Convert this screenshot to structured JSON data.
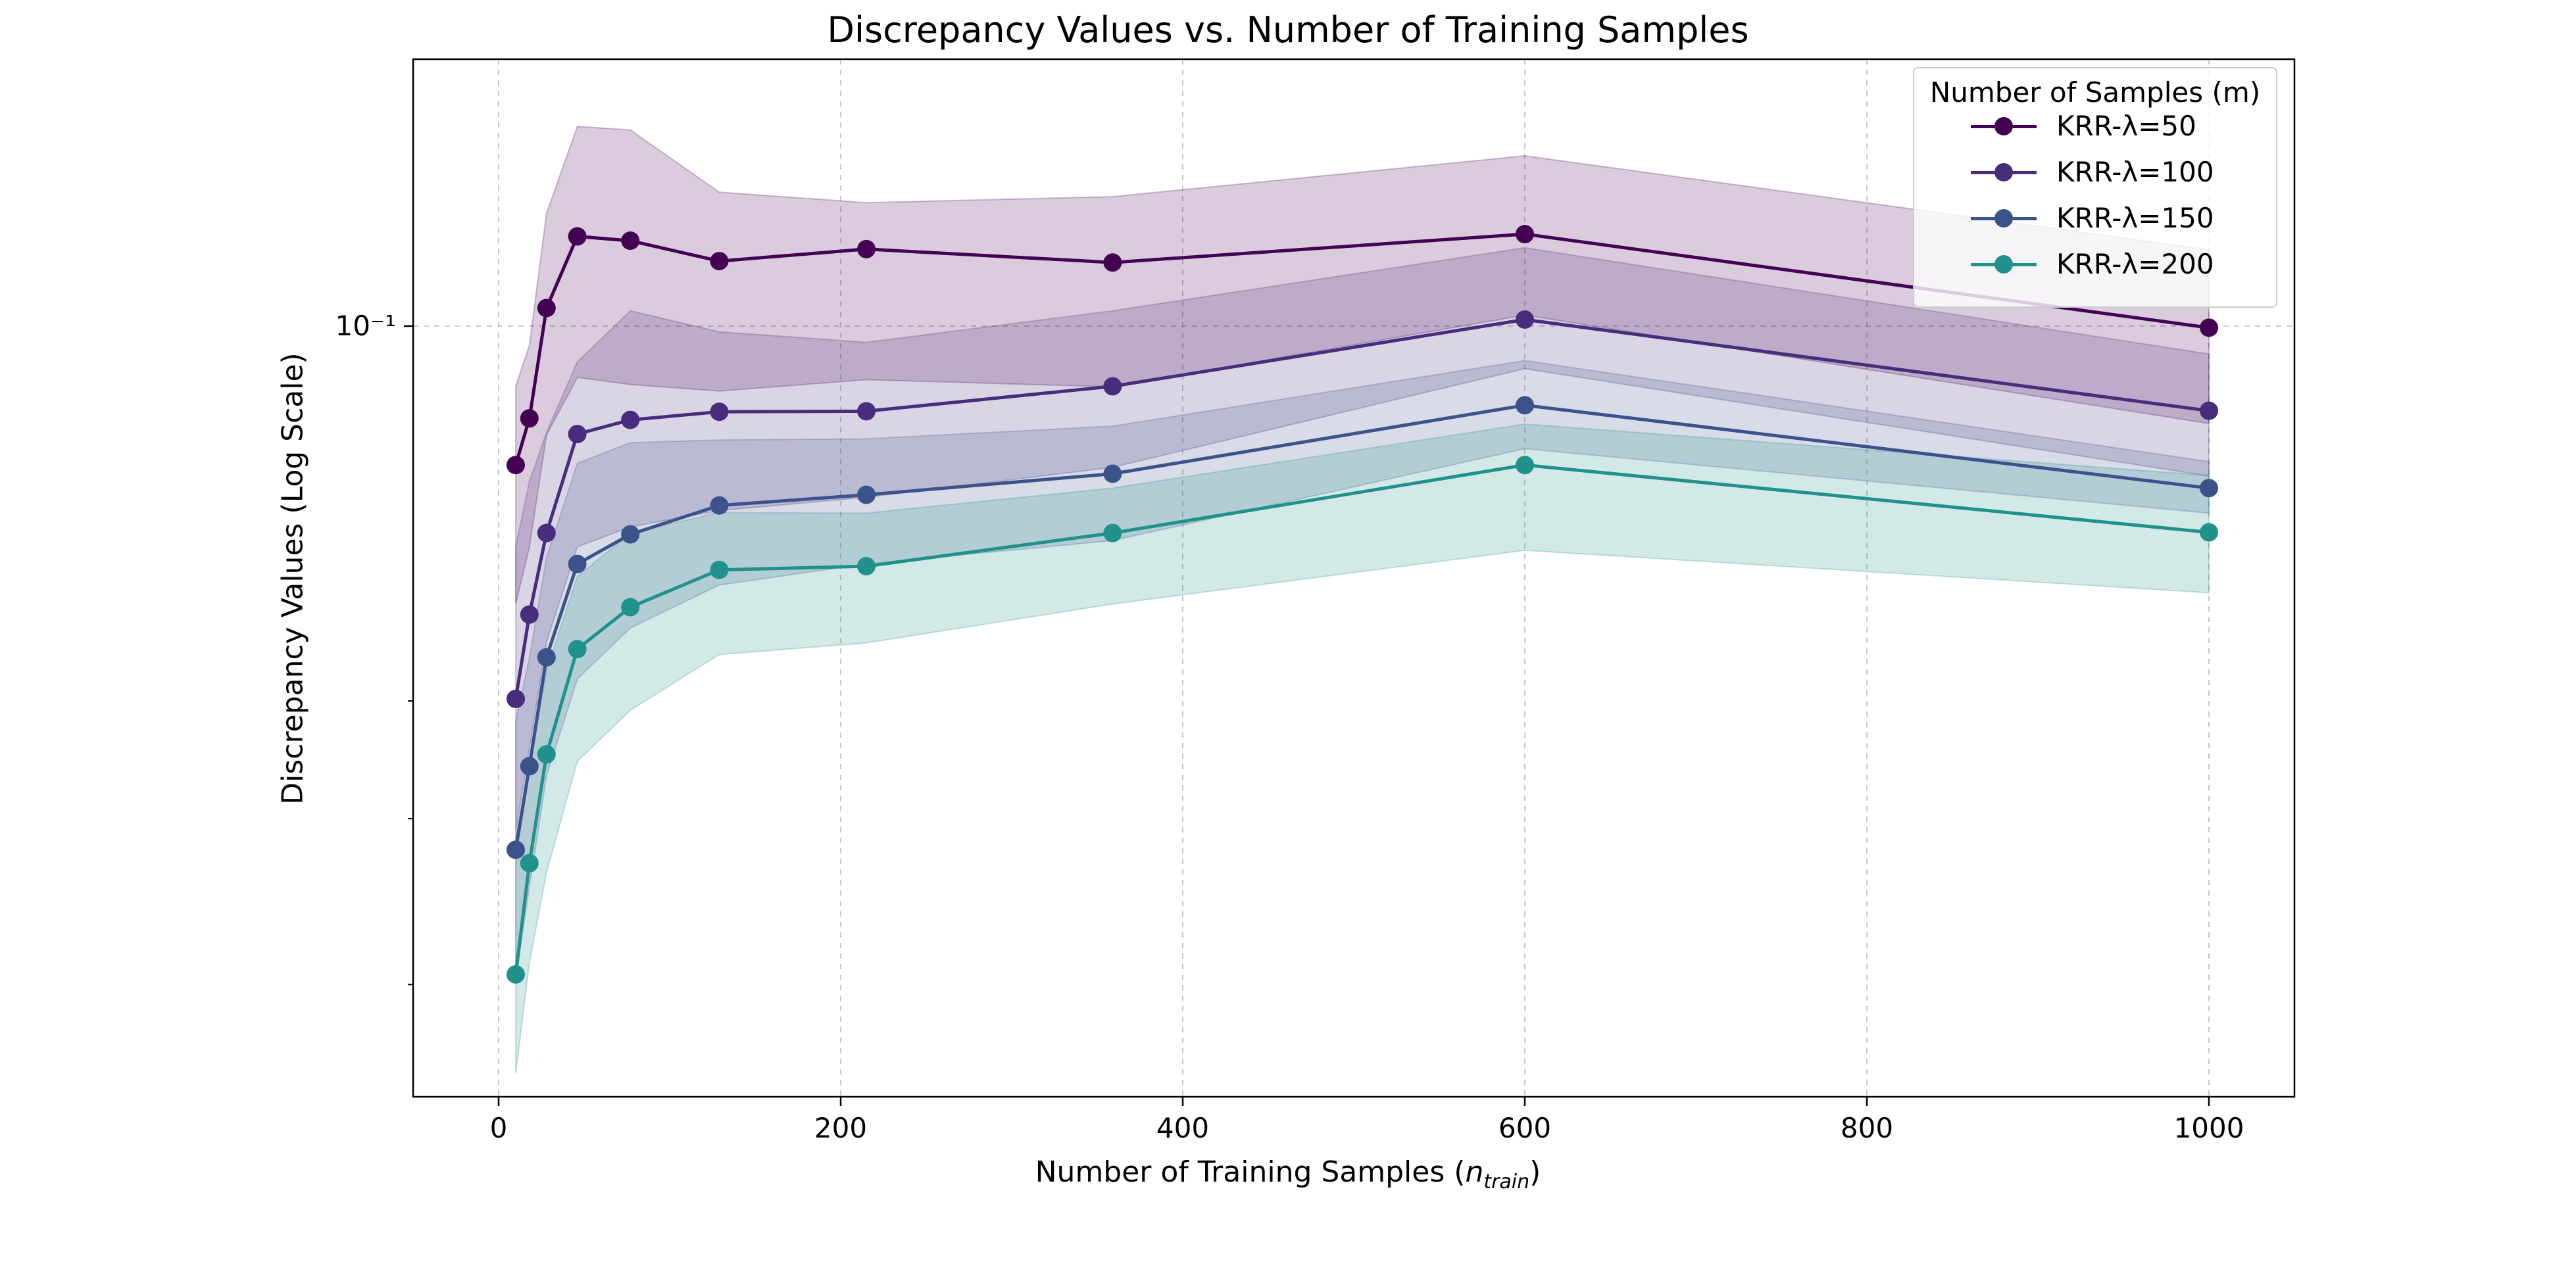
{
  "chart_data": {
    "type": "line",
    "title": "Discrepancy Values vs. Number of Training Samples",
    "xlabel_prefix": "Number of Training Samples (",
    "xlabel_math": "n",
    "xlabel_sub": "train",
    "xlabel_suffix": ")",
    "ylabel": "Discrepancy Values (Log Scale)",
    "x_scale": "linear",
    "y_scale": "log",
    "xlim": [
      -50,
      1050
    ],
    "ylim": [
      0.0152,
      0.192
    ],
    "x_ticks": [
      0,
      200,
      400,
      600,
      800,
      1000
    ],
    "x_tick_labels": [
      "0",
      "200",
      "400",
      "600",
      "800",
      "1000"
    ],
    "y_ticks": [
      0.1
    ],
    "y_tick_labels": [
      "10⁻¹"
    ],
    "y_minor_ticks": [
      0.02,
      0.03,
      0.04
    ],
    "grid": true,
    "legend_position": "top-right",
    "legend_title": "Number of Samples (m)",
    "x": [
      10,
      18,
      28,
      46,
      77,
      129,
      215,
      359,
      600,
      1000
    ],
    "series": [
      {
        "name": "KRR-λ=50",
        "color": "#440154",
        "values": [
          0.0712,
          0.0798,
          0.1045,
          0.1245,
          0.1232,
          0.1172,
          0.1207,
          0.1168,
          0.1252,
          0.0996
        ],
        "lower": [
          0.0507,
          0.0583,
          0.0766,
          0.0882,
          0.0867,
          0.0853,
          0.0877,
          0.0862,
          0.1027,
          0.0788
        ],
        "upper": [
          0.0863,
          0.0954,
          0.1317,
          0.1629,
          0.1615,
          0.1387,
          0.1352,
          0.1372,
          0.1516,
          0.1205
        ]
      },
      {
        "name": "KRR-λ=100",
        "color": "#472d7b",
        "values": [
          0.0402,
          0.0494,
          0.0603,
          0.0768,
          0.0795,
          0.0811,
          0.0812,
          0.0863,
          0.1016,
          0.0813
        ],
        "lower": [
          0.0291,
          0.0356,
          0.0462,
          0.0583,
          0.0612,
          0.0637,
          0.0658,
          0.0708,
          0.0901,
          0.0693
        ],
        "upper": [
          0.0583,
          0.0684,
          0.0771,
          0.0916,
          0.1038,
          0.0986,
          0.0961,
          0.1038,
          0.1211,
          0.0934
        ]
      },
      {
        "name": "KRR-λ=150",
        "color": "#3b528b",
        "values": [
          0.0278,
          0.0341,
          0.0445,
          0.0559,
          0.0601,
          0.0645,
          0.0662,
          0.0697,
          0.0824,
          0.0673
        ],
        "lower": [
          0.0203,
          0.0254,
          0.0333,
          0.0422,
          0.0478,
          0.0531,
          0.0559,
          0.0592,
          0.0741,
          0.0633
        ],
        "upper": [
          0.0381,
          0.0444,
          0.0568,
          0.0715,
          0.0752,
          0.0757,
          0.0759,
          0.0783,
          0.0919,
          0.0718
        ]
      },
      {
        "name": "KRR-λ=200",
        "color": "#21918c",
        "values": [
          0.0205,
          0.0269,
          0.0351,
          0.0454,
          0.0503,
          0.0551,
          0.0556,
          0.0603,
          0.0712,
          0.0604
        ],
        "lower": [
          0.0161,
          0.0211,
          0.0263,
          0.0345,
          0.0391,
          0.0448,
          0.0461,
          0.0507,
          0.0578,
          0.0521
        ],
        "upper": [
          0.0287,
          0.0339,
          0.0431,
          0.0542,
          0.0603,
          0.0634,
          0.0633,
          0.0673,
          0.0787,
          0.0694
        ]
      }
    ]
  }
}
